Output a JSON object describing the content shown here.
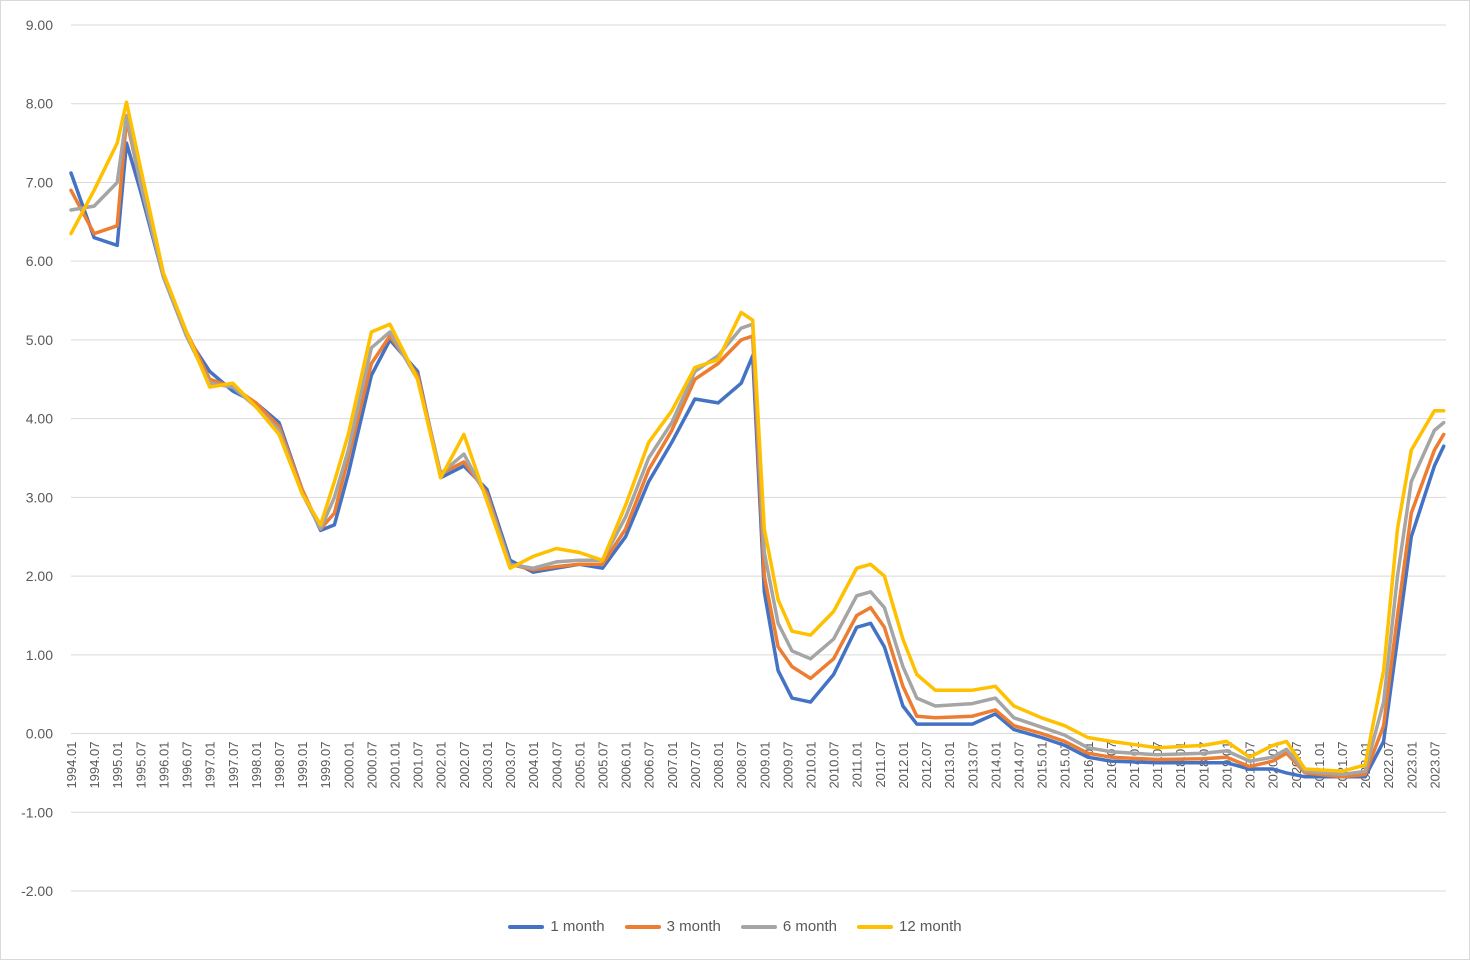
{
  "chart_data": {
    "type": "line",
    "title": "",
    "xlabel": "",
    "ylabel": "",
    "ylim": [
      -2,
      9
    ],
    "y_ticks": [
      "9.00",
      "8.00",
      "7.00",
      "6.00",
      "5.00",
      "4.00",
      "3.00",
      "2.00",
      "1.00",
      "0.00",
      "-1.00",
      "-2.00"
    ],
    "x_ticks": [
      "1994.01",
      "1994.07",
      "1995.01",
      "1995.07",
      "1996.01",
      "1996.07",
      "1997.01",
      "1997.07",
      "1998.01",
      "1998.07",
      "1999.01",
      "1999.07",
      "2000.01",
      "2000.07",
      "2001.01",
      "2001.07",
      "2002.01",
      "2002.07",
      "2003.01",
      "2003.07",
      "2004.01",
      "2004.07",
      "2005.01",
      "2005.07",
      "2006.01",
      "2006.07",
      "2007.01",
      "2007.07",
      "2008.01",
      "2008.07",
      "2009.01",
      "2009.07",
      "2010.01",
      "2010.07",
      "2011.01",
      "2011.07",
      "2012.01",
      "2012.07",
      "2013.01",
      "2013.07",
      "2014.01",
      "2014.07",
      "2015.01",
      "2015.07",
      "2016.01",
      "2016.07",
      "2017.01",
      "2017.07",
      "2018.01",
      "2018.07",
      "2019.01",
      "2019.07",
      "2020.01",
      "2020.07",
      "2021.01",
      "2021.07",
      "2022.01",
      "2022.07",
      "2023.01",
      "2023.07"
    ],
    "grid": true,
    "legend_position": "bottom",
    "series": [
      {
        "name": "1 month",
        "color": "#4472C4",
        "points": [
          [
            1994.0,
            7.12
          ],
          [
            1994.5,
            6.3
          ],
          [
            1995.0,
            6.2
          ],
          [
            1995.2,
            7.5
          ],
          [
            1995.5,
            6.9
          ],
          [
            1996.0,
            5.8
          ],
          [
            1996.5,
            5.05
          ],
          [
            1997.0,
            4.6
          ],
          [
            1997.5,
            4.35
          ],
          [
            1998.0,
            4.2
          ],
          [
            1998.5,
            3.95
          ],
          [
            1999.0,
            3.1
          ],
          [
            1999.4,
            2.58
          ],
          [
            1999.7,
            2.65
          ],
          [
            2000.0,
            3.3
          ],
          [
            2000.5,
            4.55
          ],
          [
            2000.9,
            5.0
          ],
          [
            2001.5,
            4.6
          ],
          [
            2002.0,
            3.25
          ],
          [
            2002.5,
            3.4
          ],
          [
            2003.0,
            3.1
          ],
          [
            2003.5,
            2.2
          ],
          [
            2004.0,
            2.05
          ],
          [
            2004.5,
            2.1
          ],
          [
            2005.0,
            2.15
          ],
          [
            2005.5,
            2.1
          ],
          [
            2006.0,
            2.5
          ],
          [
            2006.5,
            3.2
          ],
          [
            2007.0,
            3.7
          ],
          [
            2007.5,
            4.25
          ],
          [
            2008.0,
            4.2
          ],
          [
            2008.5,
            4.45
          ],
          [
            2008.75,
            4.8
          ],
          [
            2009.0,
            1.8
          ],
          [
            2009.3,
            0.8
          ],
          [
            2009.6,
            0.45
          ],
          [
            2010.0,
            0.4
          ],
          [
            2010.5,
            0.75
          ],
          [
            2011.0,
            1.35
          ],
          [
            2011.3,
            1.4
          ],
          [
            2011.6,
            1.1
          ],
          [
            2012.0,
            0.35
          ],
          [
            2012.3,
            0.12
          ],
          [
            2012.7,
            0.12
          ],
          [
            2013.5,
            0.12
          ],
          [
            2014.0,
            0.25
          ],
          [
            2014.4,
            0.05
          ],
          [
            2015.0,
            -0.05
          ],
          [
            2015.5,
            -0.15
          ],
          [
            2016.0,
            -0.3
          ],
          [
            2016.5,
            -0.35
          ],
          [
            2017.5,
            -0.37
          ],
          [
            2018.5,
            -0.37
          ],
          [
            2019.0,
            -0.37
          ],
          [
            2019.5,
            -0.45
          ],
          [
            2020.0,
            -0.45
          ],
          [
            2020.3,
            -0.5
          ],
          [
            2020.7,
            -0.55
          ],
          [
            2021.5,
            -0.55
          ],
          [
            2022.0,
            -0.55
          ],
          [
            2022.4,
            -0.1
          ],
          [
            2022.7,
            1.2
          ],
          [
            2023.0,
            2.5
          ],
          [
            2023.5,
            3.4
          ],
          [
            2023.7,
            3.65
          ]
        ]
      },
      {
        "name": "3 month",
        "color": "#ED7D31",
        "points": [
          [
            1994.0,
            6.9
          ],
          [
            1994.5,
            6.35
          ],
          [
            1995.0,
            6.45
          ],
          [
            1995.2,
            7.8
          ],
          [
            1995.5,
            7.0
          ],
          [
            1996.0,
            5.8
          ],
          [
            1996.5,
            5.1
          ],
          [
            1997.0,
            4.5
          ],
          [
            1997.5,
            4.4
          ],
          [
            1998.0,
            4.2
          ],
          [
            1998.5,
            3.9
          ],
          [
            1999.0,
            3.1
          ],
          [
            1999.4,
            2.6
          ],
          [
            1999.7,
            2.8
          ],
          [
            2000.0,
            3.5
          ],
          [
            2000.5,
            4.7
          ],
          [
            2000.9,
            5.05
          ],
          [
            2001.5,
            4.55
          ],
          [
            2002.0,
            3.3
          ],
          [
            2002.5,
            3.45
          ],
          [
            2003.0,
            3.05
          ],
          [
            2003.5,
            2.15
          ],
          [
            2004.0,
            2.08
          ],
          [
            2004.5,
            2.12
          ],
          [
            2005.0,
            2.15
          ],
          [
            2005.5,
            2.15
          ],
          [
            2006.0,
            2.6
          ],
          [
            2006.5,
            3.35
          ],
          [
            2007.0,
            3.85
          ],
          [
            2007.5,
            4.5
          ],
          [
            2008.0,
            4.7
          ],
          [
            2008.5,
            5.0
          ],
          [
            2008.75,
            5.05
          ],
          [
            2009.0,
            2.0
          ],
          [
            2009.3,
            1.1
          ],
          [
            2009.6,
            0.85
          ],
          [
            2010.0,
            0.7
          ],
          [
            2010.5,
            0.95
          ],
          [
            2011.0,
            1.5
          ],
          [
            2011.3,
            1.6
          ],
          [
            2011.6,
            1.35
          ],
          [
            2012.0,
            0.6
          ],
          [
            2012.3,
            0.22
          ],
          [
            2012.7,
            0.2
          ],
          [
            2013.5,
            0.22
          ],
          [
            2014.0,
            0.3
          ],
          [
            2014.4,
            0.1
          ],
          [
            2015.0,
            0.0
          ],
          [
            2015.5,
            -0.1
          ],
          [
            2016.0,
            -0.25
          ],
          [
            2016.5,
            -0.3
          ],
          [
            2017.5,
            -0.33
          ],
          [
            2018.5,
            -0.32
          ],
          [
            2019.0,
            -0.3
          ],
          [
            2019.5,
            -0.42
          ],
          [
            2020.0,
            -0.35
          ],
          [
            2020.3,
            -0.25
          ],
          [
            2020.7,
            -0.5
          ],
          [
            2021.5,
            -0.55
          ],
          [
            2022.0,
            -0.52
          ],
          [
            2022.4,
            0.1
          ],
          [
            2022.7,
            1.5
          ],
          [
            2023.0,
            2.8
          ],
          [
            2023.5,
            3.6
          ],
          [
            2023.7,
            3.8
          ]
        ]
      },
      {
        "name": "6 month",
        "color": "#A5A5A5",
        "points": [
          [
            1994.0,
            6.65
          ],
          [
            1994.5,
            6.7
          ],
          [
            1995.0,
            7.0
          ],
          [
            1995.2,
            7.85
          ],
          [
            1995.5,
            7.0
          ],
          [
            1996.0,
            5.8
          ],
          [
            1996.5,
            5.05
          ],
          [
            1997.0,
            4.45
          ],
          [
            1997.5,
            4.4
          ],
          [
            1998.0,
            4.15
          ],
          [
            1998.5,
            3.85
          ],
          [
            1999.0,
            3.05
          ],
          [
            1999.4,
            2.6
          ],
          [
            1999.7,
            3.0
          ],
          [
            2000.0,
            3.6
          ],
          [
            2000.5,
            4.9
          ],
          [
            2000.9,
            5.1
          ],
          [
            2001.5,
            4.5
          ],
          [
            2002.0,
            3.3
          ],
          [
            2002.5,
            3.55
          ],
          [
            2003.0,
            3.0
          ],
          [
            2003.5,
            2.15
          ],
          [
            2004.0,
            2.1
          ],
          [
            2004.5,
            2.18
          ],
          [
            2005.0,
            2.2
          ],
          [
            2005.5,
            2.2
          ],
          [
            2006.0,
            2.75
          ],
          [
            2006.5,
            3.5
          ],
          [
            2007.0,
            3.95
          ],
          [
            2007.5,
            4.6
          ],
          [
            2008.0,
            4.8
          ],
          [
            2008.5,
            5.15
          ],
          [
            2008.75,
            5.2
          ],
          [
            2009.0,
            2.3
          ],
          [
            2009.3,
            1.4
          ],
          [
            2009.6,
            1.05
          ],
          [
            2010.0,
            0.95
          ],
          [
            2010.5,
            1.2
          ],
          [
            2011.0,
            1.75
          ],
          [
            2011.3,
            1.8
          ],
          [
            2011.6,
            1.6
          ],
          [
            2012.0,
            0.85
          ],
          [
            2012.3,
            0.45
          ],
          [
            2012.7,
            0.35
          ],
          [
            2013.5,
            0.38
          ],
          [
            2014.0,
            0.45
          ],
          [
            2014.4,
            0.2
          ],
          [
            2015.0,
            0.08
          ],
          [
            2015.5,
            -0.02
          ],
          [
            2016.0,
            -0.18
          ],
          [
            2016.5,
            -0.23
          ],
          [
            2017.5,
            -0.27
          ],
          [
            2018.5,
            -0.25
          ],
          [
            2019.0,
            -0.22
          ],
          [
            2019.5,
            -0.35
          ],
          [
            2020.0,
            -0.3
          ],
          [
            2020.3,
            -0.2
          ],
          [
            2020.7,
            -0.48
          ],
          [
            2021.5,
            -0.52
          ],
          [
            2022.0,
            -0.48
          ],
          [
            2022.4,
            0.4
          ],
          [
            2022.7,
            2.0
          ],
          [
            2023.0,
            3.2
          ],
          [
            2023.5,
            3.85
          ],
          [
            2023.7,
            3.95
          ]
        ]
      },
      {
        "name": "12 month",
        "color": "#FFC000",
        "points": [
          [
            1994.0,
            6.35
          ],
          [
            1994.5,
            6.9
          ],
          [
            1995.0,
            7.5
          ],
          [
            1995.2,
            8.02
          ],
          [
            1995.5,
            7.2
          ],
          [
            1996.0,
            5.85
          ],
          [
            1996.5,
            5.1
          ],
          [
            1997.0,
            4.4
          ],
          [
            1997.5,
            4.45
          ],
          [
            1998.0,
            4.15
          ],
          [
            1998.5,
            3.8
          ],
          [
            1999.0,
            3.05
          ],
          [
            1999.4,
            2.65
          ],
          [
            1999.7,
            3.2
          ],
          [
            2000.0,
            3.8
          ],
          [
            2000.5,
            5.1
          ],
          [
            2000.9,
            5.2
          ],
          [
            2001.5,
            4.5
          ],
          [
            2002.0,
            3.25
          ],
          [
            2002.5,
            3.8
          ],
          [
            2003.0,
            2.95
          ],
          [
            2003.5,
            2.1
          ],
          [
            2004.0,
            2.25
          ],
          [
            2004.5,
            2.35
          ],
          [
            2005.0,
            2.3
          ],
          [
            2005.5,
            2.2
          ],
          [
            2006.0,
            2.9
          ],
          [
            2006.5,
            3.7
          ],
          [
            2007.0,
            4.1
          ],
          [
            2007.5,
            4.65
          ],
          [
            2008.0,
            4.75
          ],
          [
            2008.5,
            5.35
          ],
          [
            2008.75,
            5.25
          ],
          [
            2009.0,
            2.6
          ],
          [
            2009.3,
            1.7
          ],
          [
            2009.6,
            1.3
          ],
          [
            2010.0,
            1.25
          ],
          [
            2010.5,
            1.55
          ],
          [
            2011.0,
            2.1
          ],
          [
            2011.3,
            2.15
          ],
          [
            2011.6,
            2.0
          ],
          [
            2012.0,
            1.2
          ],
          [
            2012.3,
            0.75
          ],
          [
            2012.7,
            0.55
          ],
          [
            2013.5,
            0.55
          ],
          [
            2014.0,
            0.6
          ],
          [
            2014.4,
            0.35
          ],
          [
            2015.0,
            0.2
          ],
          [
            2015.5,
            0.1
          ],
          [
            2016.0,
            -0.05
          ],
          [
            2016.5,
            -0.1
          ],
          [
            2017.5,
            -0.18
          ],
          [
            2018.5,
            -0.15
          ],
          [
            2019.0,
            -0.1
          ],
          [
            2019.5,
            -0.3
          ],
          [
            2020.0,
            -0.15
          ],
          [
            2020.3,
            -0.1
          ],
          [
            2020.7,
            -0.45
          ],
          [
            2021.5,
            -0.48
          ],
          [
            2022.0,
            -0.4
          ],
          [
            2022.4,
            0.8
          ],
          [
            2022.7,
            2.6
          ],
          [
            2023.0,
            3.6
          ],
          [
            2023.5,
            4.1
          ],
          [
            2023.7,
            4.1
          ]
        ]
      }
    ]
  }
}
